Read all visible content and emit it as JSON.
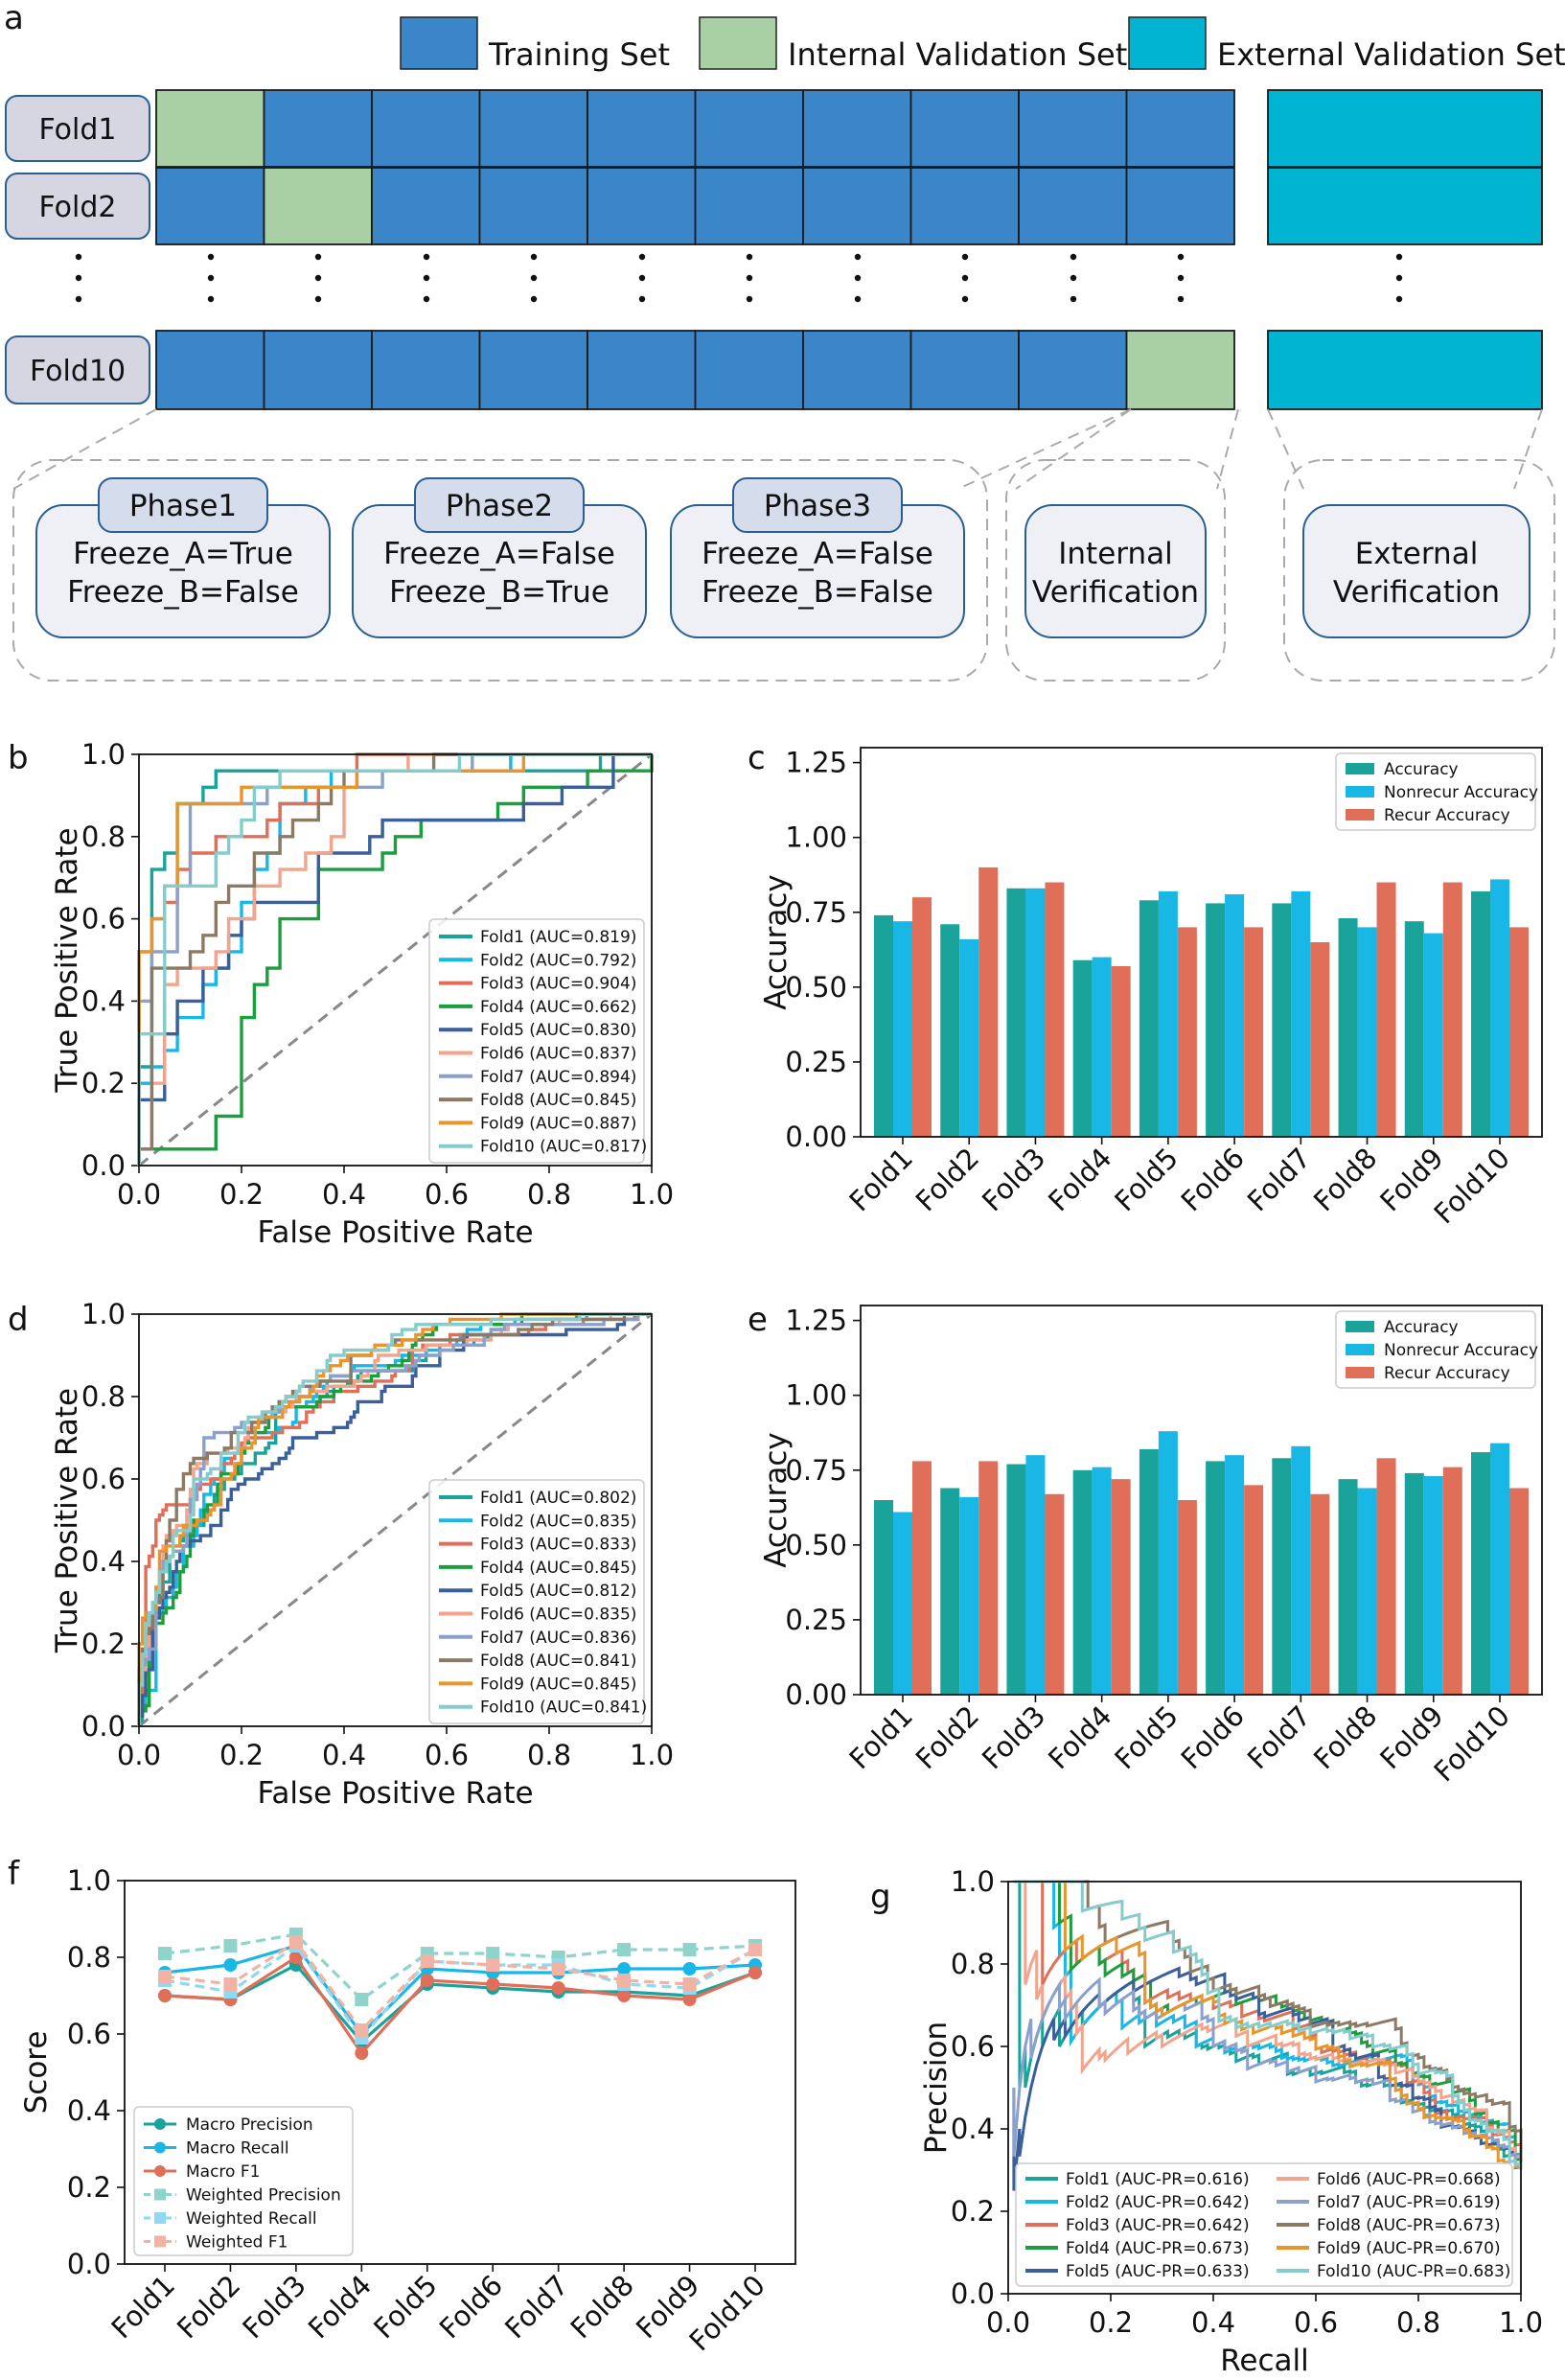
{
  "colors": {
    "training": "#3a86c8",
    "internal": "#a9cfa5",
    "external": "#00b4d2",
    "fold_pill": "#d6d6e3",
    "phase_pill": "#d5dceb",
    "phase_box": "#eef0f5",
    "box_border": "#2a5f94",
    "dashed": "#aaaaaa",
    "acc": "#1aa39a",
    "nonrecur": "#19b7e6",
    "recur": "#e06f5a"
  },
  "panel_a": {
    "letter": "a",
    "legend": [
      "Training Set",
      "Internal Validation Set",
      "External Validation Set"
    ],
    "folds": [
      "Fold1",
      "Fold2",
      "Fold10"
    ],
    "ellipsis": "⋮",
    "phases": [
      {
        "title": "Phase1",
        "lines": [
          "Freeze_A=True",
          "Freeze_B=False"
        ]
      },
      {
        "title": "Phase2",
        "lines": [
          "Freeze_A=False",
          "Freeze_B=True"
        ]
      },
      {
        "title": "Phase3",
        "lines": [
          "Freeze_A=False",
          "Freeze_B=False"
        ]
      }
    ],
    "internal_ver": [
      "Internal",
      "Verification"
    ],
    "external_ver": [
      "External",
      "Verification"
    ]
  },
  "letters": {
    "b": "b",
    "c": "c",
    "d": "d",
    "e": "e",
    "f": "f",
    "g": "g"
  },
  "chart_data": [
    {
      "panel": "b",
      "type": "line",
      "xlabel": "False Positive Rate",
      "ylabel": "True Positive Rate",
      "xlim": [
        0,
        1
      ],
      "ylim": [
        0,
        1
      ],
      "ticks": [
        "0.0",
        "0.2",
        "0.4",
        "0.6",
        "0.8",
        "1.0"
      ],
      "legend": [
        "Fold1 (AUC=0.819)",
        "Fold2 (AUC=0.792)",
        "Fold3 (AUC=0.904)",
        "Fold4 (AUC=0.662)",
        "Fold5 (AUC=0.830)",
        "Fold6 (AUC=0.837)",
        "Fold7 (AUC=0.894)",
        "Fold8 (AUC=0.845)",
        "Fold9 (AUC=0.887)",
        "Fold10 (AUC=0.817)"
      ],
      "auc": [
        0.819,
        0.792,
        0.904,
        0.662,
        0.83,
        0.837,
        0.894,
        0.845,
        0.887,
        0.817
      ],
      "diagonal": true
    },
    {
      "panel": "c",
      "type": "bar",
      "ylabel": "Accuracy",
      "ylim": [
        0,
        1.3
      ],
      "yticks": [
        "0.00",
        "0.25",
        "0.50",
        "0.75",
        "1.00",
        "1.25"
      ],
      "categories": [
        "Fold1",
        "Fold2",
        "Fold3",
        "Fold4",
        "Fold5",
        "Fold6",
        "Fold7",
        "Fold8",
        "Fold9",
        "Fold10"
      ],
      "series": [
        {
          "name": "Accuracy",
          "values": [
            0.74,
            0.71,
            0.83,
            0.59,
            0.79,
            0.78,
            0.78,
            0.73,
            0.72,
            0.82
          ]
        },
        {
          "name": "Nonrecur Accuracy",
          "values": [
            0.72,
            0.66,
            0.83,
            0.6,
            0.82,
            0.81,
            0.82,
            0.7,
            0.68,
            0.86
          ]
        },
        {
          "name": "Recur Accuracy",
          "values": [
            0.8,
            0.9,
            0.85,
            0.57,
            0.7,
            0.7,
            0.65,
            0.85,
            0.85,
            0.7
          ]
        }
      ]
    },
    {
      "panel": "d",
      "type": "line",
      "xlabel": "False Positive Rate",
      "ylabel": "True Positive Rate",
      "xlim": [
        0,
        1
      ],
      "ylim": [
        0,
        1
      ],
      "ticks": [
        "0.0",
        "0.2",
        "0.4",
        "0.6",
        "0.8",
        "1.0"
      ],
      "legend": [
        "Fold1 (AUC=0.802)",
        "Fold2 (AUC=0.835)",
        "Fold3 (AUC=0.833)",
        "Fold4 (AUC=0.845)",
        "Fold5 (AUC=0.812)",
        "Fold6 (AUC=0.835)",
        "Fold7 (AUC=0.836)",
        "Fold8 (AUC=0.841)",
        "Fold9 (AUC=0.845)",
        "Fold10 (AUC=0.841)"
      ],
      "auc": [
        0.802,
        0.835,
        0.833,
        0.845,
        0.812,
        0.835,
        0.836,
        0.841,
        0.845,
        0.841
      ],
      "diagonal": true
    },
    {
      "panel": "e",
      "type": "bar",
      "ylabel": "Accuracy",
      "ylim": [
        0,
        1.3
      ],
      "yticks": [
        "0.00",
        "0.25",
        "0.50",
        "0.75",
        "1.00",
        "1.25"
      ],
      "categories": [
        "Fold1",
        "Fold2",
        "Fold3",
        "Fold4",
        "Fold5",
        "Fold6",
        "Fold7",
        "Fold8",
        "Fold9",
        "Fold10"
      ],
      "series": [
        {
          "name": "Accuracy",
          "values": [
            0.65,
            0.69,
            0.77,
            0.75,
            0.82,
            0.78,
            0.79,
            0.72,
            0.74,
            0.81
          ]
        },
        {
          "name": "Nonrecur Accuracy",
          "values": [
            0.61,
            0.66,
            0.8,
            0.76,
            0.88,
            0.8,
            0.83,
            0.69,
            0.73,
            0.84
          ]
        },
        {
          "name": "Recur Accuracy",
          "values": [
            0.78,
            0.78,
            0.67,
            0.72,
            0.65,
            0.7,
            0.67,
            0.79,
            0.76,
            0.69
          ]
        }
      ]
    },
    {
      "panel": "f",
      "type": "line",
      "ylabel": "Score",
      "ylim": [
        0,
        1
      ],
      "yticks": [
        "0.0",
        "0.2",
        "0.4",
        "0.6",
        "0.8",
        "1.0"
      ],
      "categories": [
        "Fold1",
        "Fold2",
        "Fold3",
        "Fold4",
        "Fold5",
        "Fold6",
        "Fold7",
        "Fold8",
        "Fold9",
        "Fold10"
      ],
      "series": [
        {
          "name": "Macro Precision",
          "values": [
            0.7,
            0.69,
            0.78,
            0.58,
            0.73,
            0.72,
            0.71,
            0.71,
            0.7,
            0.76
          ]
        },
        {
          "name": "Macro Recall",
          "values": [
            0.76,
            0.78,
            0.83,
            0.6,
            0.77,
            0.76,
            0.76,
            0.77,
            0.77,
            0.78
          ]
        },
        {
          "name": "Macro F1",
          "values": [
            0.7,
            0.69,
            0.8,
            0.55,
            0.74,
            0.73,
            0.72,
            0.7,
            0.69,
            0.76
          ]
        },
        {
          "name": "Weighted Precision",
          "values": [
            0.81,
            0.83,
            0.86,
            0.69,
            0.81,
            0.81,
            0.8,
            0.82,
            0.82,
            0.83
          ]
        },
        {
          "name": "Weighted Recall",
          "values": [
            0.74,
            0.71,
            0.83,
            0.59,
            0.79,
            0.78,
            0.78,
            0.73,
            0.72,
            0.82
          ]
        },
        {
          "name": "Weighted F1",
          "values": [
            0.75,
            0.73,
            0.84,
            0.61,
            0.79,
            0.78,
            0.77,
            0.74,
            0.73,
            0.82
          ]
        }
      ]
    },
    {
      "panel": "g",
      "type": "line",
      "xlabel": "Recall",
      "ylabel": "Precision",
      "xlim": [
        0,
        1
      ],
      "ylim": [
        0,
        1
      ],
      "ticks": [
        "0.0",
        "0.2",
        "0.4",
        "0.6",
        "0.8",
        "1.0"
      ],
      "legend": [
        "Fold1 (AUC-PR=0.616)",
        "Fold2 (AUC-PR=0.642)",
        "Fold3 (AUC-PR=0.642)",
        "Fold4 (AUC-PR=0.673)",
        "Fold5 (AUC-PR=0.633)",
        "Fold6 (AUC-PR=0.668)",
        "Fold7 (AUC-PR=0.619)",
        "Fold8 (AUC-PR=0.673)",
        "Fold9 (AUC-PR=0.670)",
        "Fold10 (AUC-PR=0.683)"
      ],
      "auc": [
        0.616,
        0.642,
        0.642,
        0.673,
        0.633,
        0.668,
        0.619,
        0.673,
        0.67,
        0.683
      ]
    }
  ],
  "fold_colors": [
    "#1aa39a",
    "#19b7e6",
    "#e06f5a",
    "#1c9d3e",
    "#3b5f98",
    "#f2a58c",
    "#8ba1cc",
    "#8c7a64",
    "#e8952e",
    "#85cccc"
  ]
}
